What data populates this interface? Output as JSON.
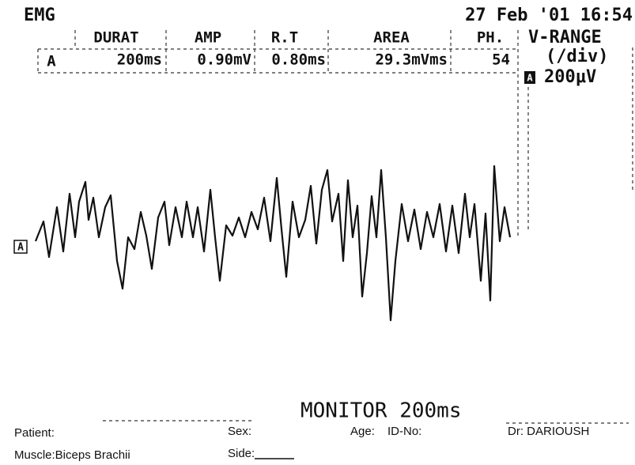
{
  "header": {
    "mode": "EMG",
    "datetime": "27 Feb '01 16:54"
  },
  "table": {
    "columns": [
      "DURAT",
      "AMP",
      "R.T",
      "AREA",
      "PH."
    ],
    "rows": [
      [
        "A",
        "200ms",
        "0.90mV",
        "0.80ms",
        "29.3mVms",
        "54"
      ]
    ]
  },
  "v_range": {
    "title": "V-RANGE",
    "unit": "(/div)",
    "channel": "A",
    "value": "200μV"
  },
  "channel_label": "A",
  "monitor": "MONITOR 200ms",
  "footer": {
    "patient": "Patient:",
    "sex": "Sex:",
    "age": "Age:",
    "id": "ID-No:",
    "doctor": "Dr: DARIOUSH",
    "muscle": "Muscle:Biceps Brachii",
    "side": "Side:"
  }
}
